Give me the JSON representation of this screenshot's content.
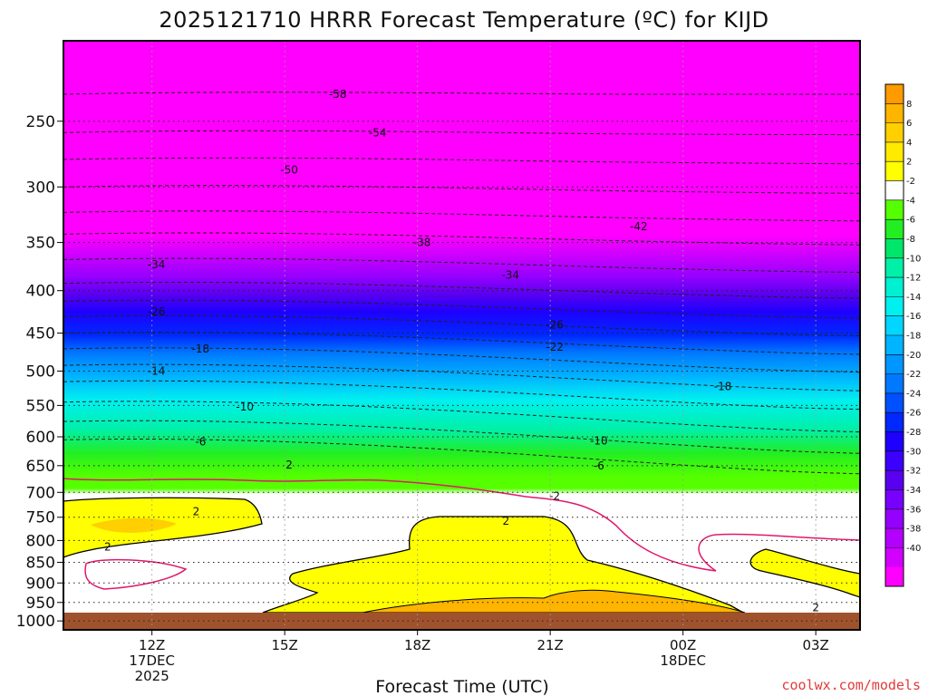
{
  "chart_data": {
    "type": "heatmap",
    "title": "2025121710 HRRR Forecast Temperature (ºC) for KIJD",
    "xlabel": "Forecast Time (UTC)",
    "credit": "coolwx.com/models",
    "x_ticks": [
      {
        "value": 12,
        "lines": [
          "12Z",
          "17DEC",
          "2025"
        ]
      },
      {
        "value": 15,
        "lines": [
          "15Z"
        ]
      },
      {
        "value": 18,
        "lines": [
          "18Z"
        ]
      },
      {
        "value": 21,
        "lines": [
          "21Z"
        ]
      },
      {
        "value": 24,
        "lines": [
          "00Z",
          "18DEC"
        ]
      },
      {
        "value": 27,
        "lines": [
          "03Z"
        ]
      }
    ],
    "xlim": [
      10,
      28
    ],
    "y_ticks": [
      1000,
      950,
      900,
      850,
      800,
      750,
      700,
      650,
      600,
      550,
      500,
      450,
      400,
      350,
      300,
      250
    ],
    "ylim_hpa": [
      1025,
      200
    ],
    "y_scale": "log",
    "colorbar_ticks": [
      8,
      6,
      4,
      2,
      -2,
      -4,
      -6,
      -8,
      -10,
      -12,
      -14,
      -16,
      -18,
      -20,
      -22,
      -24,
      -26,
      -28,
      -30,
      -32,
      -34,
      -36,
      -38,
      -40
    ],
    "colorbar_colors": [
      "#ff9a00",
      "#ffb400",
      "#ffcf00",
      "#ffea00",
      "#ffff00",
      "#ffffff",
      "#55ff00",
      "#22ee22",
      "#00e66a",
      "#00f0a8",
      "#00f0d2",
      "#00f0f0",
      "#00d6ff",
      "#00b4ff",
      "#0096ff",
      "#0078ff",
      "#0050ff",
      "#0028ff",
      "#1e00ff",
      "#3c00ff",
      "#5a00f0",
      "#7800ff",
      "#9600ff",
      "#b400ff",
      "#d200ff",
      "#ff00ff"
    ],
    "isotherm_labels": [
      {
        "text": "-58",
        "x": 16.2,
        "p": 232
      },
      {
        "text": "-54",
        "x": 17.1,
        "p": 258
      },
      {
        "text": "-50",
        "x": 15.1,
        "p": 286
      },
      {
        "text": "-42",
        "x": 23.0,
        "p": 335
      },
      {
        "text": "-38",
        "x": 18.1,
        "p": 350
      },
      {
        "text": "-34",
        "x": 12.1,
        "p": 372
      },
      {
        "text": "-34",
        "x": 20.1,
        "p": 383
      },
      {
        "text": "-26",
        "x": 12.1,
        "p": 424
      },
      {
        "text": "-26",
        "x": 21.1,
        "p": 440
      },
      {
        "text": "-22",
        "x": 21.1,
        "p": 468
      },
      {
        "text": "-18",
        "x": 13.1,
        "p": 470
      },
      {
        "text": "-14",
        "x": 12.1,
        "p": 500
      },
      {
        "text": "-18",
        "x": 24.9,
        "p": 522
      },
      {
        "text": "-10",
        "x": 14.1,
        "p": 552
      },
      {
        "text": "-6",
        "x": 13.1,
        "p": 608
      },
      {
        "text": "-10",
        "x": 22.1,
        "p": 607
      },
      {
        "text": "-6",
        "x": 22.1,
        "p": 650
      },
      {
        "text": "2",
        "x": 15.1,
        "p": 649
      },
      {
        "text": "-2",
        "x": 21.1,
        "p": 707
      },
      {
        "text": "2",
        "x": 13.0,
        "p": 738
      },
      {
        "text": "2",
        "x": 20.0,
        "p": 758
      },
      {
        "text": "2",
        "x": 11.0,
        "p": 814
      },
      {
        "text": "2",
        "x": 27.0,
        "p": 964
      }
    ]
  }
}
